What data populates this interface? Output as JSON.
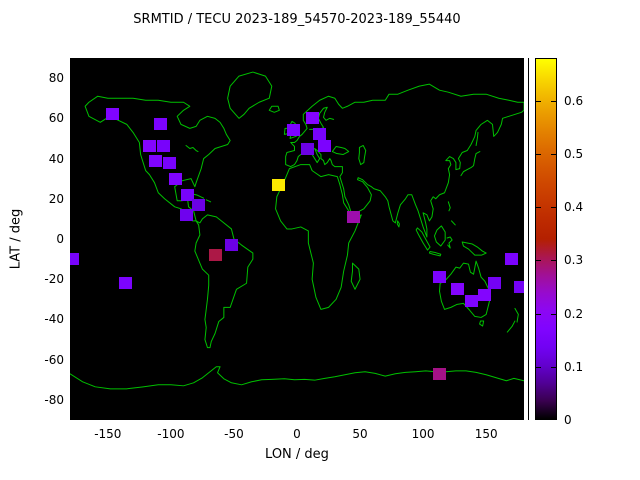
{
  "title": "SRMTID / TECU 2023-189_54570-2023-189_55440",
  "axes": {
    "xlabel": "LON / deg",
    "ylabel": "LAT / deg",
    "x_ticks": [
      -150,
      -100,
      -50,
      0,
      50,
      100,
      150
    ],
    "y_ticks": [
      -80,
      -60,
      -40,
      -20,
      0,
      20,
      40,
      60,
      80
    ],
    "xlim": [
      -180,
      180
    ],
    "ylim": [
      -90,
      90
    ]
  },
  "colorbar": {
    "min": 0,
    "max": 0.68,
    "ticks": [
      0,
      0.1,
      0.2,
      0.3,
      0.4,
      0.5,
      0.6
    ],
    "palette": "black-violet-magenta-red-orange-yellow"
  },
  "colors": {
    "page_bg": "#ffffff",
    "map_bg": "#000000",
    "coastline": "#00c000",
    "text": "#000000",
    "max_cell": "#fbe900"
  },
  "chart_data": {
    "type": "heatmap",
    "title": "SRMTID / TECU 2023-189_54570-2023-189_55440",
    "xlabel": "LON / deg",
    "ylabel": "LAT / deg",
    "xlim": [
      -180,
      180
    ],
    "ylim": [
      -90,
      90
    ],
    "colorbar_range": [
      0,
      0.68
    ],
    "legend_position": "right-colorbar",
    "grid": false,
    "points": [
      {
        "lon": -146,
        "lat": 62,
        "tecu": 0.17
      },
      {
        "lon": -108,
        "lat": 57,
        "tecu": 0.16
      },
      {
        "lon": -117,
        "lat": 46,
        "tecu": 0.18
      },
      {
        "lon": -106,
        "lat": 46,
        "tecu": 0.15
      },
      {
        "lon": -112,
        "lat": 39,
        "tecu": 0.17
      },
      {
        "lon": -101,
        "lat": 38,
        "tecu": 0.15
      },
      {
        "lon": -96,
        "lat": 30,
        "tecu": 0.17
      },
      {
        "lon": -87,
        "lat": 22,
        "tecu": 0.15
      },
      {
        "lon": -78,
        "lat": 17,
        "tecu": 0.12
      },
      {
        "lon": -88,
        "lat": 12,
        "tecu": 0.13
      },
      {
        "lon": -65,
        "lat": -8,
        "tecu": 0.31
      },
      {
        "lon": -52,
        "lat": -3,
        "tecu": 0.12
      },
      {
        "lon": -178,
        "lat": -10,
        "tecu": 0.15
      },
      {
        "lon": -136,
        "lat": -22,
        "tecu": 0.16
      },
      {
        "lon": -15,
        "lat": 27,
        "tecu": 0.66
      },
      {
        "lon": -3,
        "lat": 54,
        "tecu": 0.16
      },
      {
        "lon": 12,
        "lat": 60,
        "tecu": 0.18
      },
      {
        "lon": 18,
        "lat": 52,
        "tecu": 0.15
      },
      {
        "lon": 22,
        "lat": 46,
        "tecu": 0.16
      },
      {
        "lon": 8,
        "lat": 45,
        "tecu": 0.12
      },
      {
        "lon": 45,
        "lat": 11,
        "tecu": 0.26
      },
      {
        "lon": 113,
        "lat": -19,
        "tecu": 0.16
      },
      {
        "lon": 127,
        "lat": -25,
        "tecu": 0.18
      },
      {
        "lon": 138,
        "lat": -31,
        "tecu": 0.17
      },
      {
        "lon": 149,
        "lat": -28,
        "tecu": 0.18
      },
      {
        "lon": 157,
        "lat": -22,
        "tecu": 0.14
      },
      {
        "lon": 170,
        "lat": -10,
        "tecu": 0.16
      },
      {
        "lon": 177,
        "lat": -24,
        "tecu": 0.14
      },
      {
        "lon": 113,
        "lat": -67,
        "tecu": 0.28
      }
    ]
  }
}
